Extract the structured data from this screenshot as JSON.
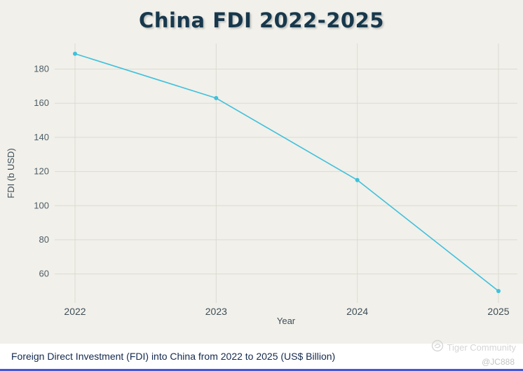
{
  "title": "China FDI 2022-2025",
  "caption": "Foreign Direct Investment (FDI) into China from 2022 to 2025 (US$ Billion)",
  "watermark": {
    "brand": "Tiger Community",
    "user": "@JC888"
  },
  "chart_data": {
    "type": "line",
    "title": "China FDI 2022-2025",
    "x": [
      "2022",
      "2023",
      "2024",
      "2025"
    ],
    "series": [
      {
        "name": "FDI",
        "values": [
          189,
          163,
          115,
          50
        ]
      }
    ],
    "xlabel": "Year",
    "ylabel": "FDI (b USD)",
    "yticks": [
      60,
      80,
      100,
      120,
      140,
      160,
      180
    ],
    "ylim": [
      43,
      195
    ],
    "grid": true,
    "legend": "none",
    "line_color": "#3fc1dc",
    "grid_color": "#dcdad2",
    "background_color": "#f1f0ea"
  }
}
